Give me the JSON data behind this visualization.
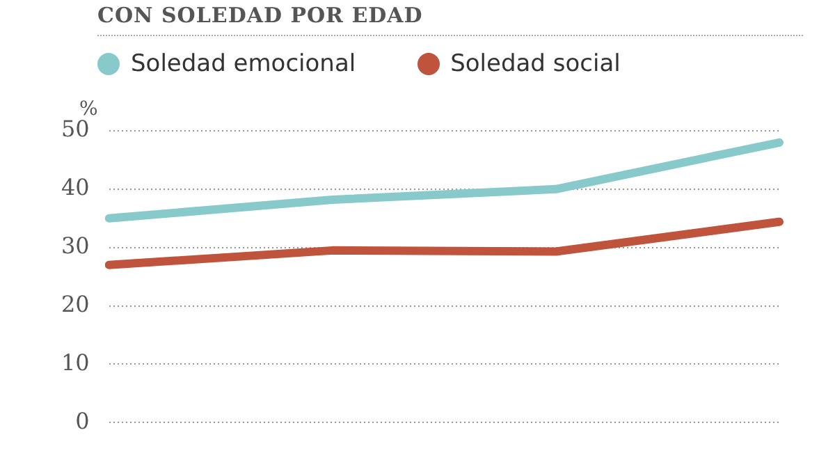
{
  "chart_data": {
    "type": "line",
    "title": "CON SOLEDAD POR EDAD",
    "ylabel": "%",
    "categories": [
      null,
      null,
      null,
      null
    ],
    "series": [
      {
        "name": "Soledad emocional",
        "color": "#88c9cc",
        "values": [
          35,
          38.2,
          40,
          48
        ]
      },
      {
        "name": "Soledad social",
        "color": "#c0533b",
        "values": [
          27,
          29.5,
          29.3,
          34.4
        ]
      }
    ],
    "ylim": [
      0,
      50
    ],
    "yticks": [
      0,
      10,
      20,
      30,
      40,
      50
    ],
    "grid": "y",
    "legend": "top left",
    "marker": "none",
    "line_style": "solid"
  }
}
